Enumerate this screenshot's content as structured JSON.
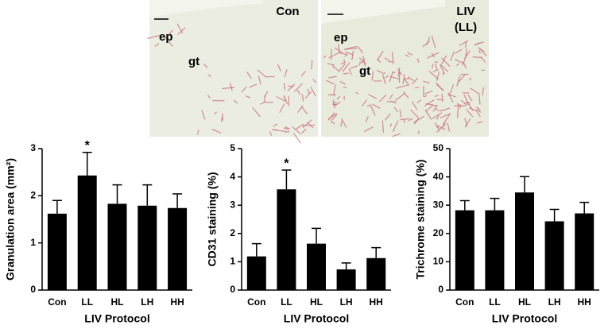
{
  "micrographs": [
    {
      "label": [
        "Con"
      ],
      "annotations": [
        "ep",
        "gt"
      ]
    },
    {
      "label": [
        "LIV",
        "(LL)"
      ],
      "annotations": [
        "ep",
        "gt"
      ]
    }
  ],
  "chart_data": [
    {
      "type": "bar",
      "ylabel": "Granulation area (mm²)",
      "xlabel": "LIV Protocol",
      "categories": [
        "Con",
        "LL",
        "HL",
        "LH",
        "HH"
      ],
      "values": [
        1.62,
        2.43,
        1.83,
        1.79,
        1.74
      ],
      "errors": [
        0.28,
        0.49,
        0.4,
        0.44,
        0.3
      ],
      "color": "#000000",
      "ylim": [
        0,
        3
      ],
      "yticks": [
        0,
        1,
        2,
        3
      ],
      "annotations": [
        {
          "category": "LL",
          "text": "*"
        }
      ]
    },
    {
      "type": "bar",
      "ylabel": "CD31 staining (%)",
      "xlabel": "LIV Protocol",
      "categories": [
        "Con",
        "LL",
        "HL",
        "LH",
        "HH"
      ],
      "values": [
        1.19,
        3.56,
        1.64,
        0.73,
        1.13
      ],
      "errors": [
        0.45,
        0.68,
        0.54,
        0.23,
        0.37
      ],
      "color": "#000000",
      "ylim": [
        0,
        5
      ],
      "yticks": [
        0,
        1,
        2,
        3,
        4,
        5
      ],
      "annotations": [
        {
          "category": "LL",
          "text": "*"
        }
      ]
    },
    {
      "type": "bar",
      "ylabel": "Trichrome staining (%)",
      "xlabel": "LIV Protocol",
      "categories": [
        "Con",
        "LL",
        "HL",
        "LH",
        "HH"
      ],
      "values": [
        28.2,
        28.2,
        34.5,
        24.3,
        27.1
      ],
      "errors": [
        3.4,
        4.2,
        5.6,
        4.2,
        3.9
      ],
      "color": "#000000",
      "ylim": [
        0,
        50
      ],
      "yticks": [
        0,
        10,
        20,
        30,
        40,
        50
      ]
    }
  ]
}
